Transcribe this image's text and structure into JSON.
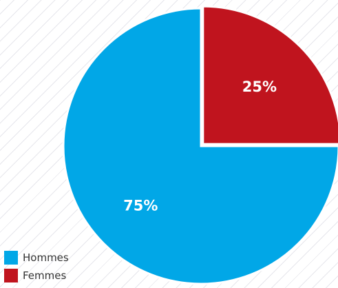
{
  "chart_data": {
    "type": "pie",
    "categories": [
      "Hommes",
      "Femmes"
    ],
    "values": [
      75,
      25
    ],
    "labels": [
      "75%",
      "25%"
    ],
    "colors": [
      "#01A7E7",
      "#C0141E"
    ],
    "legend_position": "bottom-left",
    "exploded": "Femmes"
  },
  "legend": {
    "items": [
      {
        "label": "Hommes",
        "color": "#01A7E7"
      },
      {
        "label": "Femmes",
        "color": "#C0141E"
      }
    ]
  }
}
